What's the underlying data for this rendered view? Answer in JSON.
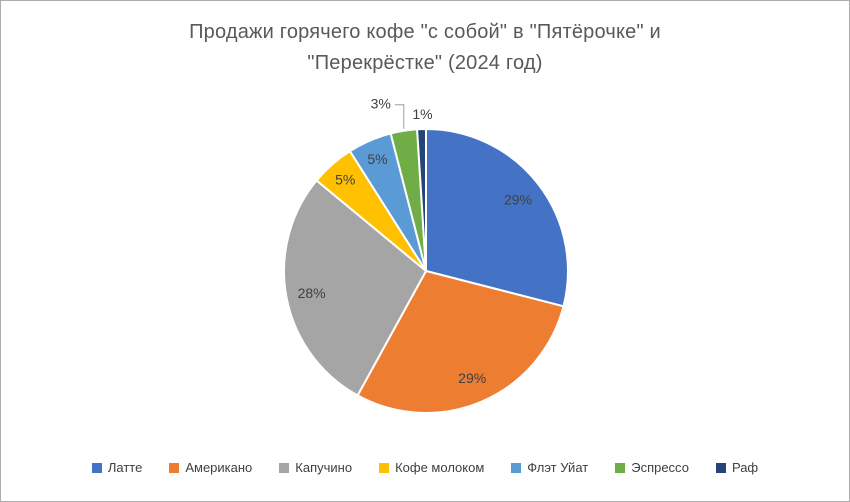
{
  "window": {
    "background": "#FFFFFF",
    "border_color": "#ACACAC"
  },
  "chart_data": {
    "type": "pie",
    "title": "Продажи горячего кофе \"с собой\" в \"Пятёрочке\" и \"Перекрёстке\" (2024 год)",
    "title_lines": [
      "Продажи горячего кофе \"с собой\" в \"Пятёрочке\" и",
      "\"Перекрёстке\" (2024 год)"
    ],
    "categories": [
      "Латте",
      "Американо",
      "Капучино",
      "Кофе молоком",
      "Флэт Уйат",
      "Эспрессо",
      "Раф"
    ],
    "values": [
      29,
      29,
      28,
      5,
      5,
      3,
      1
    ],
    "labels": [
      "29%",
      "29%",
      "28%",
      "5%",
      "5%",
      "3%",
      "1%"
    ],
    "colors": [
      "#4472C4",
      "#ED7D31",
      "#A5A5A5",
      "#FFC000",
      "#5B9BD5",
      "#70AD47",
      "#264478"
    ],
    "label_placement": [
      "inside",
      "inside",
      "inside",
      "inside",
      "inside",
      "leader",
      "above"
    ],
    "start_angle": "top",
    "direction": "clockwise",
    "slice_border_color": "#FFFFFF",
    "label_color": "#404040",
    "title_color": "#595959",
    "leader_line_color": "#9E9E9E",
    "legend_position": "bottom"
  }
}
